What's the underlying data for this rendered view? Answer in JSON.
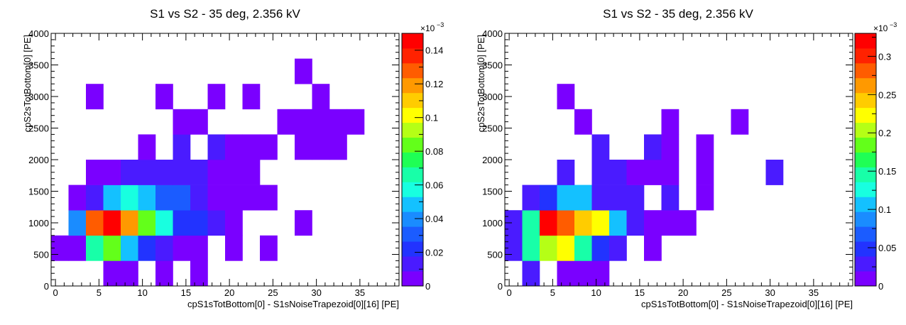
{
  "chart_data": [
    {
      "type": "heatmap",
      "title": "S1 vs S2 - 35 deg, 2.356 kV",
      "xlabel": "cpS1sTotBottom[0] - S1sNoiseTrapezoid[0][16] [PE]",
      "ylabel": "cpS2sTotBottom[0] [PE]",
      "xlim": [
        -0.5,
        39.5
      ],
      "ylim": [
        0,
        4000
      ],
      "x_ticks": [
        "0",
        "5",
        "10",
        "15",
        "20",
        "25",
        "30",
        "35"
      ],
      "y_ticks": [
        "0",
        "500",
        "1000",
        "1500",
        "2000",
        "2500",
        "3000",
        "3500",
        "4000"
      ],
      "colorbar": {
        "min": 0,
        "max": 0.15,
        "exponent_label": "×10",
        "exponent_power": "−3",
        "ticks": [
          "0",
          "0.02",
          "0.04",
          "0.06",
          "0.08",
          "0.1",
          "0.12",
          "0.14"
        ]
      },
      "bin_width_x": 2,
      "bin_height_y": 400,
      "x_start": -0.5,
      "y_start": 0,
      "cells": [
        [
          0,
          0,
          0,
          0,
          0,
          0,
          0,
          0,
          0,
          0,
          0,
          0,
          0,
          0,
          0,
          0,
          0,
          0,
          0,
          0
        ],
        [
          0,
          0,
          0,
          0,
          0,
          0,
          0,
          0,
          0,
          0,
          0,
          0,
          0,
          0,
          0,
          0,
          0,
          0,
          0,
          0
        ],
        [
          0,
          0,
          0,
          0,
          0,
          0,
          0,
          0,
          0,
          0,
          0,
          0,
          0,
          0,
          0,
          0,
          0,
          0,
          0,
          0
        ],
        [
          0,
          0,
          0,
          0,
          0,
          0,
          0,
          0,
          0,
          0,
          0,
          0,
          0,
          0,
          0,
          0,
          0,
          0,
          0,
          0
        ],
        [
          0,
          0,
          0,
          0,
          0,
          0,
          0,
          0,
          0,
          0,
          0,
          0,
          0,
          0,
          0,
          0,
          0,
          0,
          0,
          0
        ],
        [
          0,
          0,
          0,
          0,
          0,
          0,
          0,
          0,
          0,
          0,
          0,
          0,
          0,
          0,
          0,
          0,
          0,
          0,
          0,
          0
        ],
        [
          0,
          0,
          0,
          0,
          0,
          0,
          0,
          0,
          0,
          0,
          0,
          0,
          0,
          0,
          0,
          0,
          0,
          0,
          0,
          0
        ],
        [
          0,
          0,
          0,
          0,
          0,
          0,
          0,
          0,
          0,
          0,
          0,
          0,
          0,
          0,
          0,
          0,
          0,
          0,
          0,
          0
        ],
        [
          0,
          0,
          0,
          0,
          0,
          0,
          0,
          0,
          0,
          0,
          0,
          0,
          0,
          0,
          0,
          0,
          0,
          0,
          0,
          0
        ],
        [
          0,
          0,
          0,
          0,
          0,
          0,
          0,
          0,
          0,
          0,
          0,
          0,
          0,
          0,
          0,
          0,
          0,
          0,
          0,
          0
        ]
      ],
      "cell_list": [
        [
          3,
          0,
          0.004
        ],
        [
          4,
          0,
          0.004
        ],
        [
          6,
          0,
          0.004
        ],
        [
          8,
          0,
          0.004
        ],
        [
          0,
          1,
          0.006
        ],
        [
          1,
          1,
          0.006
        ],
        [
          2,
          1,
          0.07
        ],
        [
          3,
          1,
          0.08
        ],
        [
          4,
          1,
          0.045
        ],
        [
          5,
          1,
          0.02
        ],
        [
          6,
          1,
          0.013
        ],
        [
          7,
          1,
          0.006
        ],
        [
          8,
          1,
          0.006
        ],
        [
          10,
          1,
          0.004
        ],
        [
          12,
          1,
          0.004
        ],
        [
          1,
          2,
          0.04
        ],
        [
          2,
          2,
          0.13
        ],
        [
          3,
          2,
          0.15
        ],
        [
          4,
          2,
          0.12
        ],
        [
          5,
          2,
          0.08
        ],
        [
          6,
          2,
          0.055
        ],
        [
          7,
          2,
          0.025
        ],
        [
          8,
          2,
          0.02
        ],
        [
          9,
          2,
          0.013
        ],
        [
          10,
          2,
          0.006
        ],
        [
          14,
          2,
          0.006
        ],
        [
          1,
          3,
          0.006
        ],
        [
          2,
          3,
          0.017
        ],
        [
          3,
          3,
          0.045
        ],
        [
          4,
          3,
          0.055
        ],
        [
          5,
          3,
          0.05
        ],
        [
          6,
          3,
          0.035
        ],
        [
          7,
          3,
          0.035
        ],
        [
          8,
          3,
          0.013
        ],
        [
          9,
          3,
          0.008
        ],
        [
          10,
          3,
          0.006
        ],
        [
          11,
          3,
          0.006
        ],
        [
          12,
          3,
          0.006
        ],
        [
          2,
          4,
          0.008
        ],
        [
          3,
          4,
          0.008
        ],
        [
          4,
          4,
          0.014
        ],
        [
          5,
          4,
          0.014
        ],
        [
          6,
          4,
          0.014
        ],
        [
          7,
          4,
          0.014
        ],
        [
          8,
          4,
          0.013
        ],
        [
          9,
          4,
          0.006
        ],
        [
          10,
          4,
          0.006
        ],
        [
          11,
          4,
          0.006
        ],
        [
          5,
          5,
          0.006
        ],
        [
          7,
          5,
          0.014
        ],
        [
          9,
          5,
          0.014
        ],
        [
          10,
          5,
          0.006
        ],
        [
          11,
          5,
          0.006
        ],
        [
          12,
          5,
          0.006
        ],
        [
          14,
          5,
          0.006
        ],
        [
          15,
          5,
          0.006
        ],
        [
          16,
          5,
          0.006
        ],
        [
          7,
          6,
          0.006
        ],
        [
          8,
          6,
          0.006
        ],
        [
          13,
          6,
          0.006
        ],
        [
          14,
          6,
          0.006
        ],
        [
          15,
          6,
          0.006
        ],
        [
          16,
          6,
          0.006
        ],
        [
          17,
          6,
          0.006
        ],
        [
          2,
          7,
          0.004
        ],
        [
          6,
          7,
          0.004
        ],
        [
          9,
          7,
          0.004
        ],
        [
          11,
          7,
          0.004
        ],
        [
          15,
          7,
          0.004
        ],
        [
          14,
          8,
          0.004
        ]
      ]
    },
    {
      "type": "heatmap",
      "title": "S1 vs S2 - 35 deg, 2.356 kV",
      "xlabel": "cpS1sTotBottom[0] - S1sNoiseTrapezoid[0][16] [PE]",
      "ylabel": "cpS2sTotBottom[0] [PE]",
      "xlim": [
        -0.5,
        39.5
      ],
      "ylim": [
        0,
        4000
      ],
      "x_ticks": [
        "0",
        "5",
        "10",
        "15",
        "20",
        "25",
        "30",
        "35"
      ],
      "y_ticks": [
        "0",
        "500",
        "1000",
        "1500",
        "2000",
        "2500",
        "3000",
        "3500",
        "4000"
      ],
      "colorbar": {
        "min": 0,
        "max": 0.33,
        "exponent_label": "×10",
        "exponent_power": "−3",
        "ticks": [
          "0",
          "0.05",
          "0.1",
          "0.15",
          "0.2",
          "0.25",
          "0.3"
        ]
      },
      "bin_width_x": 2,
      "bin_height_y": 400,
      "x_start": -0.5,
      "y_start": 0,
      "cell_list": [
        [
          1,
          0,
          0.02
        ],
        [
          3,
          0,
          0.01
        ],
        [
          4,
          0,
          0.01
        ],
        [
          5,
          0,
          0.01
        ],
        [
          0,
          1,
          0.03
        ],
        [
          1,
          1,
          0.14
        ],
        [
          2,
          1,
          0.2
        ],
        [
          3,
          1,
          0.22
        ],
        [
          4,
          1,
          0.14
        ],
        [
          5,
          1,
          0.04
        ],
        [
          6,
          1,
          0.02
        ],
        [
          8,
          1,
          0.01
        ],
        [
          0,
          2,
          0.02
        ],
        [
          1,
          2,
          0.14
        ],
        [
          2,
          2,
          0.33
        ],
        [
          3,
          2,
          0.28
        ],
        [
          4,
          2,
          0.24
        ],
        [
          5,
          2,
          0.22
        ],
        [
          6,
          2,
          0.1
        ],
        [
          7,
          2,
          0.02
        ],
        [
          8,
          2,
          0.01
        ],
        [
          9,
          2,
          0.01
        ],
        [
          10,
          2,
          0.01
        ],
        [
          1,
          3,
          0.03
        ],
        [
          2,
          3,
          0.05
        ],
        [
          3,
          3,
          0.1
        ],
        [
          4,
          3,
          0.1
        ],
        [
          5,
          3,
          0.03
        ],
        [
          6,
          3,
          0.02
        ],
        [
          7,
          3,
          0.02
        ],
        [
          9,
          3,
          0.02
        ],
        [
          11,
          3,
          0.01
        ],
        [
          3,
          4,
          0.02
        ],
        [
          5,
          4,
          0.02
        ],
        [
          6,
          4,
          0.02
        ],
        [
          7,
          4,
          0.01
        ],
        [
          8,
          4,
          0.01
        ],
        [
          9,
          4,
          0.01
        ],
        [
          11,
          4,
          0.01
        ],
        [
          15,
          4,
          0.02
        ],
        [
          5,
          5,
          0.02
        ],
        [
          8,
          5,
          0.02
        ],
        [
          9,
          5,
          0.01
        ],
        [
          11,
          5,
          0.01
        ],
        [
          4,
          6,
          0.01
        ],
        [
          9,
          6,
          0.01
        ],
        [
          13,
          6,
          0.01
        ],
        [
          3,
          7,
          0.01
        ]
      ]
    }
  ]
}
